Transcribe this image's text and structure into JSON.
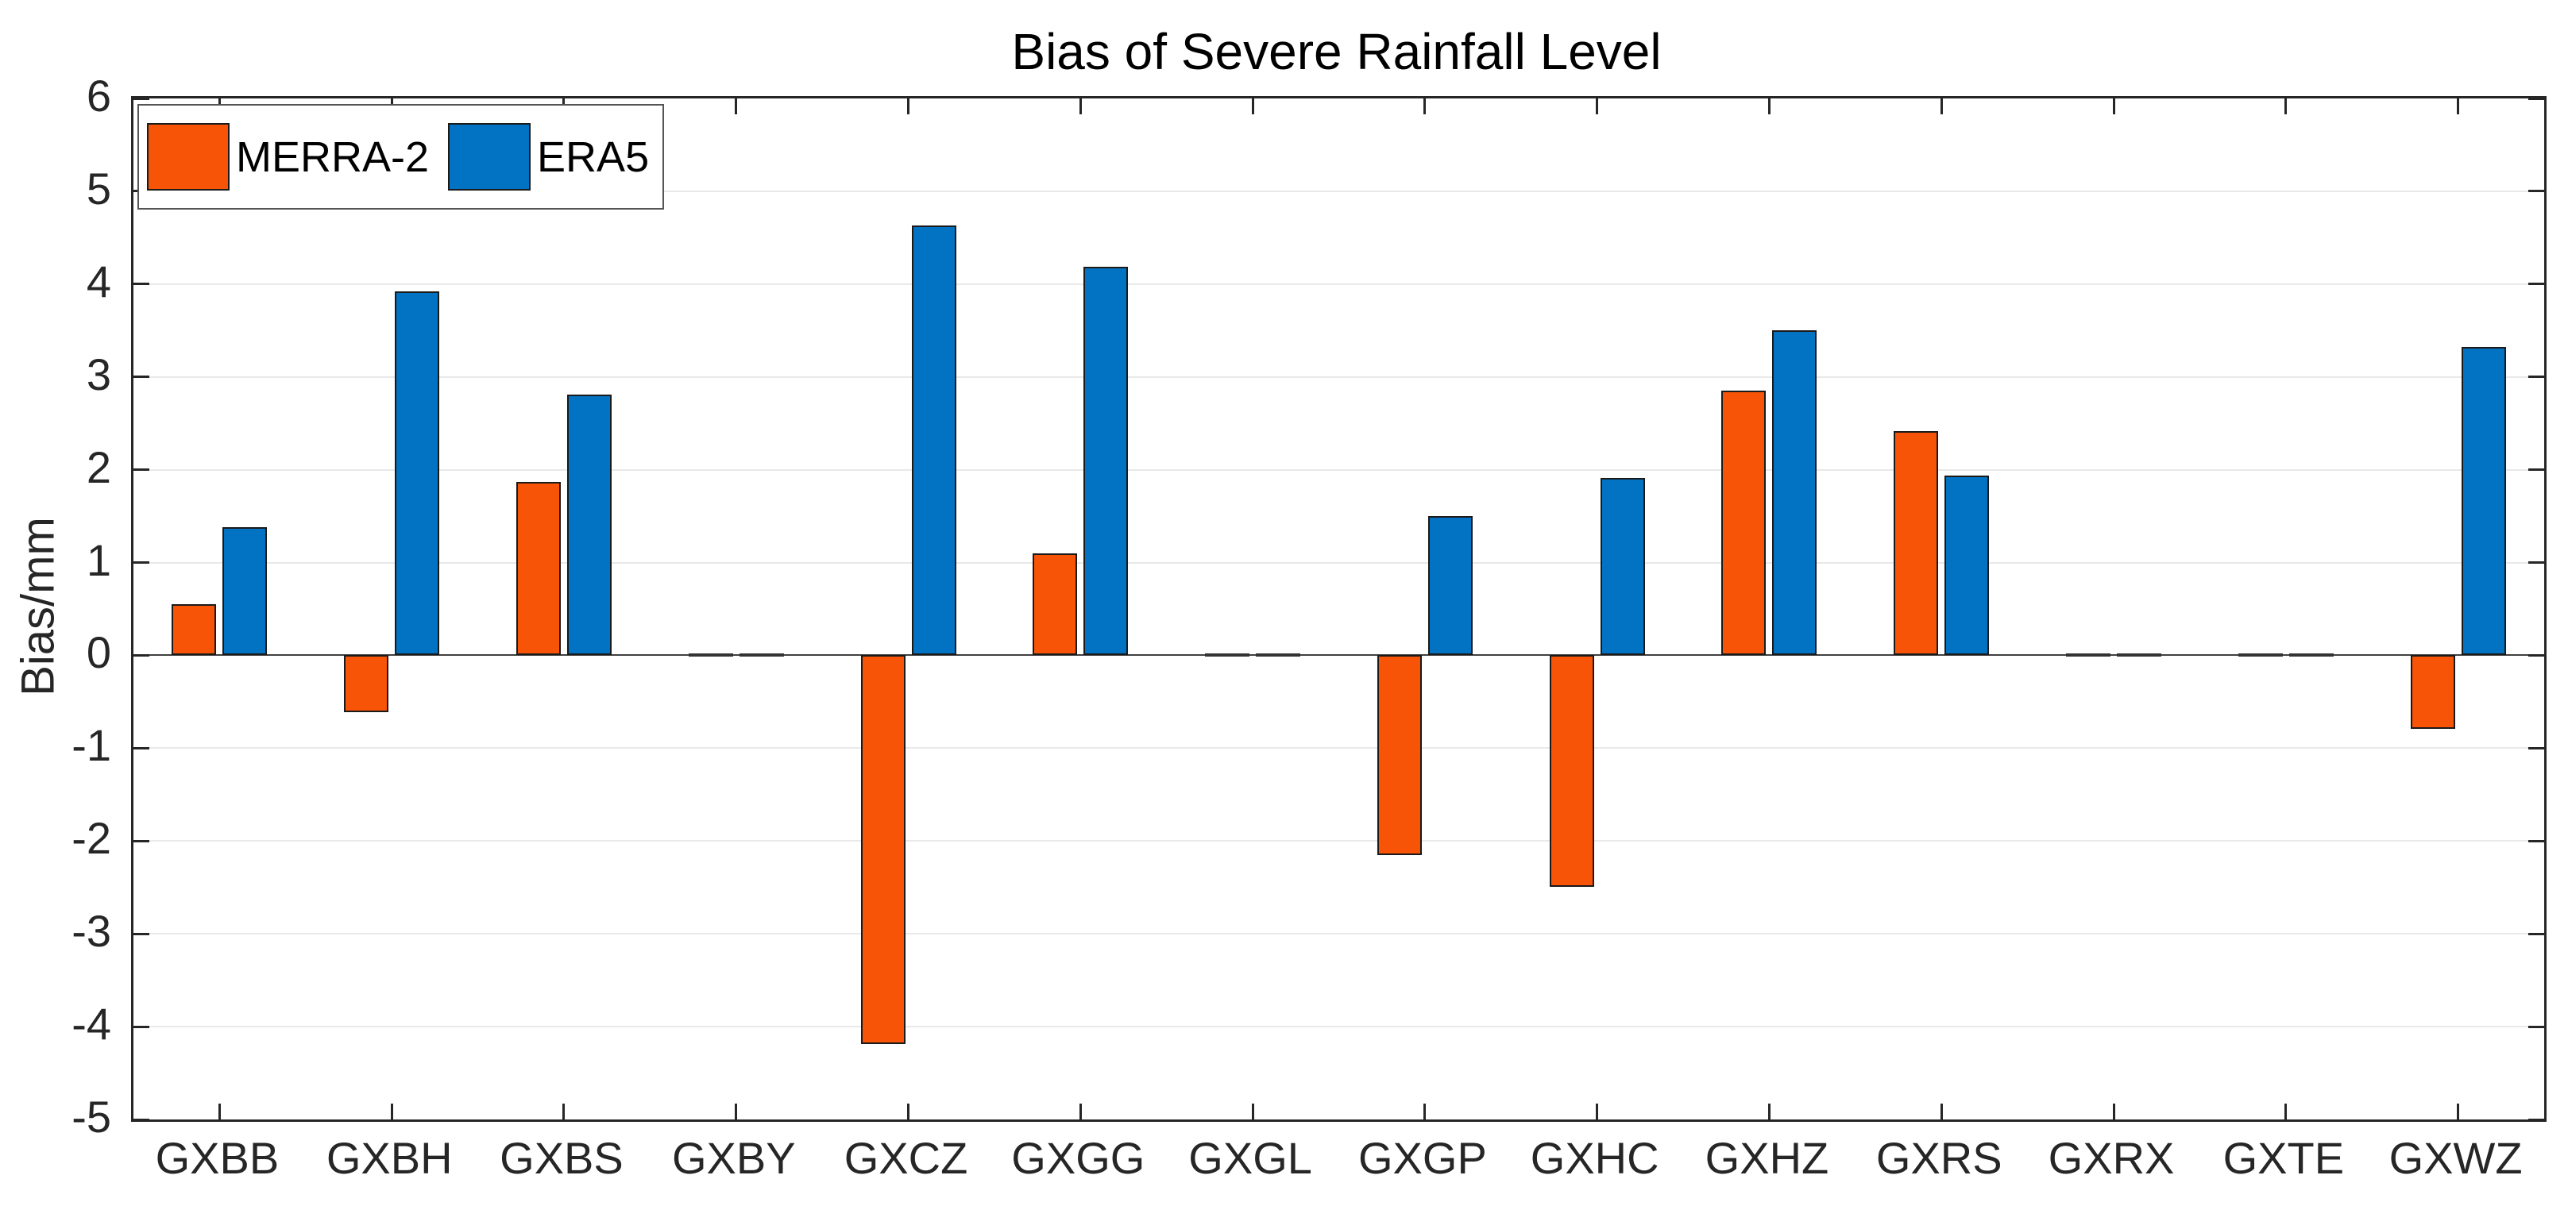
{
  "figure": {
    "title": "Bias of Severe Rainfall Level",
    "ylabel": "Bias/mm"
  },
  "legend": {
    "items": [
      {
        "label": "MERRA-2",
        "color": "#F85408"
      },
      {
        "label": "ERA5",
        "color": "#0273C3"
      }
    ]
  },
  "colors": {
    "merra2": "#F85408",
    "era5": "#0273C3",
    "axis": "#262626",
    "grid": "#e9e9e9",
    "bar_edge": "#1a1a1a"
  },
  "chart_data": {
    "type": "bar",
    "title": "Bias of Severe Rainfall Level",
    "xlabel": "",
    "ylabel": "Bias/mm",
    "categories": [
      "GXBB",
      "GXBH",
      "GXBS",
      "GXBY",
      "GXCZ",
      "GXGG",
      "GXGL",
      "GXGP",
      "GXHC",
      "GXHZ",
      "GXRS",
      "GXRX",
      "GXTE",
      "GXWZ"
    ],
    "series": [
      {
        "name": "MERRA-2",
        "color": "#F85408",
        "values": [
          0.55,
          -0.61,
          1.87,
          0,
          -4.19,
          1.1,
          0,
          -2.15,
          -2.49,
          2.85,
          2.42,
          0,
          0,
          -0.79
        ]
      },
      {
        "name": "ERA5",
        "color": "#0273C3",
        "values": [
          1.38,
          3.92,
          2.81,
          0,
          4.63,
          4.19,
          0,
          1.5,
          1.91,
          3.5,
          1.94,
          0,
          0,
          3.32
        ]
      }
    ],
    "ylim": [
      -5,
      6
    ],
    "yticks": [
      6,
      5,
      4,
      3,
      2,
      1,
      0,
      -1,
      -2,
      -3,
      -4,
      -5
    ],
    "grid": true,
    "legend_position": "top-left"
  }
}
